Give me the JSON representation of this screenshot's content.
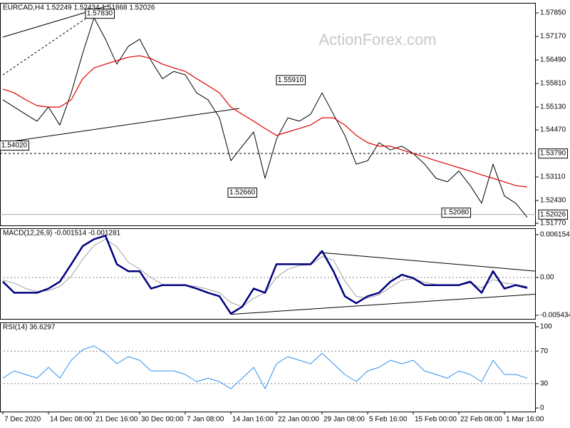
{
  "chart_data": [
    {
      "type": "line",
      "title": "EURCAD,H4 1.52249 1.52434 1.51868 1.52026",
      "watermark": "ActionForex.com",
      "xlim": [
        -1,
        187
      ],
      "ylim": [
        1.5171,
        1.5814
      ],
      "x": [
        0,
        4,
        8,
        12,
        16,
        20,
        24,
        28,
        32,
        36,
        40,
        44,
        48,
        52,
        56,
        60,
        64,
        68,
        72,
        76,
        80,
        84,
        88,
        92,
        96,
        100,
        104,
        108,
        112,
        116,
        120,
        124,
        128,
        132,
        136,
        140,
        144,
        148,
        152,
        156,
        160,
        164,
        168,
        172,
        176,
        180,
        184
      ],
      "series": [
        {
          "color": "#000000",
          "width": 1,
          "values": [
            1.5534,
            1.5513,
            1.5492,
            1.5472,
            1.5513,
            1.5461,
            1.5554,
            1.5668,
            1.5771,
            1.5709,
            1.5637,
            1.5688,
            1.5709,
            1.5647,
            1.5595,
            1.5616,
            1.5606,
            1.5554,
            1.5534,
            1.5482,
            1.5358,
            1.54,
            1.5441,
            1.5307,
            1.542,
            1.5482,
            1.5472,
            1.5492,
            1.5554,
            1.5492,
            1.5431,
            1.5348,
            1.5358,
            1.541,
            1.5389,
            1.54,
            1.5379,
            1.5348,
            1.5307,
            1.5297,
            1.5328,
            1.5286,
            1.5235,
            1.5348,
            1.5256,
            1.5235,
            1.5194
          ]
        },
        {
          "color": "#e00000",
          "width": 1.2,
          "values": [
            1.5565,
            1.5554,
            1.5534,
            1.5517,
            1.5513,
            1.5513,
            1.5534,
            1.5595,
            1.5626,
            1.5637,
            1.5647,
            1.5657,
            1.5661,
            1.5653,
            1.5637,
            1.5626,
            1.5616,
            1.5595,
            1.5575,
            1.5554,
            1.5513,
            1.5492,
            1.5472,
            1.5451,
            1.5431,
            1.5441,
            1.5451,
            1.5461,
            1.5482,
            1.5482,
            1.5461,
            1.5431,
            1.541,
            1.54,
            1.54,
            1.5389,
            1.5379,
            1.5369,
            1.5358,
            1.5348,
            1.5338,
            1.5328,
            1.5317,
            1.5307,
            1.5297,
            1.5286,
            1.5282
          ]
        }
      ],
      "yticks": [
        {
          "value": 1.5785,
          "label": "1.57850"
        },
        {
          "value": 1.5717,
          "label": "1.57170"
        },
        {
          "value": 1.5649,
          "label": "1.56490"
        },
        {
          "value": 1.5581,
          "label": "1.55810"
        },
        {
          "value": 1.5513,
          "label": "1.55130"
        },
        {
          "value": 1.5447,
          "label": "1.54470"
        },
        {
          "value": 1.5311,
          "label": "1.53110"
        },
        {
          "value": 1.5243,
          "label": "1.52430"
        },
        {
          "value": 1.5177,
          "label": "1.51770"
        }
      ],
      "hlines": [
        {
          "value": 1.5379,
          "label": "1.53790"
        }
      ],
      "last": {
        "value": 1.52026,
        "label": "1.52026"
      },
      "annotations": [
        {
          "x": 34,
          "value": 1.5783,
          "label": "1.57830"
        },
        {
          "x": 4,
          "value": 1.5402,
          "label": "1.54020"
        },
        {
          "x": 84,
          "value": 1.5266,
          "label": "1.52660"
        },
        {
          "x": 101,
          "value": 1.5591,
          "label": "1.55910"
        },
        {
          "x": 159,
          "value": 1.5208,
          "label": "1.52080"
        }
      ],
      "trendlines": [
        {
          "x": [
            0,
            37
          ],
          "y": [
            1.5715,
            1.5806
          ],
          "dashed": false
        },
        {
          "x": [
            0,
            32
          ],
          "y": [
            1.5606,
            1.5785
          ],
          "dashed": true
        },
        {
          "x": [
            0,
            83
          ],
          "y": [
            1.541,
            1.5509
          ],
          "dashed": false
        }
      ]
    },
    {
      "type": "line",
      "title": "MACD(12,26,9) -0.001514 -0.001281",
      "xlim": [
        -1,
        187
      ],
      "ylim": [
        -0.00595,
        0.00707
      ],
      "x": [
        0,
        4,
        8,
        12,
        16,
        20,
        24,
        28,
        32,
        36,
        40,
        44,
        48,
        52,
        56,
        60,
        64,
        68,
        72,
        76,
        80,
        84,
        88,
        92,
        96,
        100,
        104,
        108,
        112,
        116,
        120,
        124,
        128,
        132,
        136,
        140,
        144,
        148,
        152,
        156,
        160,
        164,
        168,
        172,
        176,
        180,
        184
      ],
      "series": [
        {
          "color": "#a0a0a0",
          "width": 1,
          "values": [
            -0.0004,
            -0.0008,
            -0.0016,
            -0.002,
            -0.0019,
            -0.0013,
            0.0002,
            0.0026,
            0.0046,
            0.0055,
            0.0044,
            0.0022,
            0.0012,
            0,
            -0.001,
            -0.0011,
            -0.0011,
            -0.0013,
            -0.0017,
            -0.0022,
            -0.0036,
            -0.0042,
            -0.003,
            -0.0022,
            0,
            0.0012,
            0.0017,
            0.0018,
            0.003,
            0.0025,
            -0.0005,
            -0.0027,
            -0.003,
            -0.0025,
            -0.0014,
            -0.0004,
            -0.0002,
            -0.0007,
            -0.001,
            -0.0011,
            -0.0011,
            -0.0008,
            -0.0015,
            -0.0003,
            -0.0008,
            -0.001,
            -0.0013
          ]
        },
        {
          "color": "#000080",
          "width": 2.5,
          "values": [
            -0.0006,
            -0.0022,
            -0.0022,
            -0.0022,
            -0.0016,
            -0.0006,
            0.0019,
            0.0045,
            0.0055,
            0.006,
            0.0019,
            0.0009,
            0.0009,
            -0.0016,
            -0.0011,
            -0.0011,
            -0.0011,
            -0.0016,
            -0.0022,
            -0.0027,
            -0.0052,
            -0.0042,
            -0.0016,
            -0.0022,
            0.0019,
            0.0019,
            0.0019,
            0.0019,
            0.0038,
            0.0009,
            -0.0027,
            -0.0037,
            -0.0027,
            -0.0022,
            -0.0006,
            0.0004,
            -0.0001,
            -0.0011,
            -0.0011,
            -0.0011,
            -0.0011,
            -0.0006,
            -0.0022,
            0.0009,
            -0.0016,
            -0.0011,
            -0.0015
          ]
        }
      ],
      "yticks": [
        {
          "value": 0.006154,
          "label": "0.006154"
        },
        {
          "value": 0,
          "label": "0.00"
        },
        {
          "value": -0.005434,
          "label": "-0.005434"
        }
      ],
      "dotted_levels": [
        0
      ],
      "trendlines": [
        {
          "x": [
            111,
            187
          ],
          "y": [
            0.0036,
            0.0009
          ],
          "dashed": false
        },
        {
          "x": [
            80,
            187
          ],
          "y": [
            -0.0053,
            -0.0024
          ],
          "dashed": false
        }
      ]
    },
    {
      "type": "line",
      "title": "RSI(14) 36.6297",
      "xlim": [
        -1,
        187
      ],
      "ylim": [
        -4.4,
        105.3
      ],
      "x": [
        0,
        4,
        8,
        12,
        16,
        20,
        24,
        28,
        32,
        36,
        40,
        44,
        48,
        52,
        56,
        60,
        64,
        68,
        72,
        76,
        80,
        84,
        88,
        92,
        96,
        100,
        104,
        108,
        112,
        116,
        120,
        124,
        128,
        132,
        136,
        140,
        144,
        148,
        152,
        156,
        160,
        164,
        168,
        172,
        176,
        180,
        184
      ],
      "series": [
        {
          "color": "#2f8fef",
          "width": 1,
          "values": [
            36.8,
            45.6,
            41.2,
            36.8,
            50,
            36.8,
            58.8,
            71.9,
            76.3,
            67.5,
            54.4,
            63.2,
            58.8,
            45.6,
            45.6,
            45.6,
            41.2,
            32.5,
            36.8,
            32.5,
            23.7,
            36.8,
            50,
            23.7,
            54.4,
            63.2,
            58.8,
            54.4,
            67.5,
            54.4,
            41.2,
            32.5,
            45.6,
            50,
            58.8,
            54.4,
            58.8,
            45.6,
            41.2,
            36.8,
            45.6,
            41.2,
            32.5,
            58.8,
            41.2,
            41.2,
            36.6297
          ]
        }
      ],
      "yticks": [
        0,
        30,
        70,
        100
      ],
      "dotted_levels": [
        30,
        70
      ],
      "xticks": [
        {
          "value": 0,
          "label": "7 Dec 2020"
        },
        {
          "value": 16,
          "label": "14 Dec 08:00"
        },
        {
          "value": 32,
          "label": "21 Dec 16:00"
        },
        {
          "value": 48,
          "label": "30 Dec 00:00"
        },
        {
          "value": 64,
          "label": "7 Jan 08:00"
        },
        {
          "value": 80,
          "label": "14 Jan 16:00"
        },
        {
          "value": 96,
          "label": "22 Jan 00:00"
        },
        {
          "value": 112,
          "label": "29 Jan 08:00"
        },
        {
          "value": 128,
          "label": "5 Feb 16:00"
        },
        {
          "value": 144,
          "label": "15 Feb 00:00"
        },
        {
          "value": 160,
          "label": "22 Feb 08:00"
        },
        {
          "value": 176,
          "label": "1 Mar 16:00"
        }
      ]
    }
  ]
}
